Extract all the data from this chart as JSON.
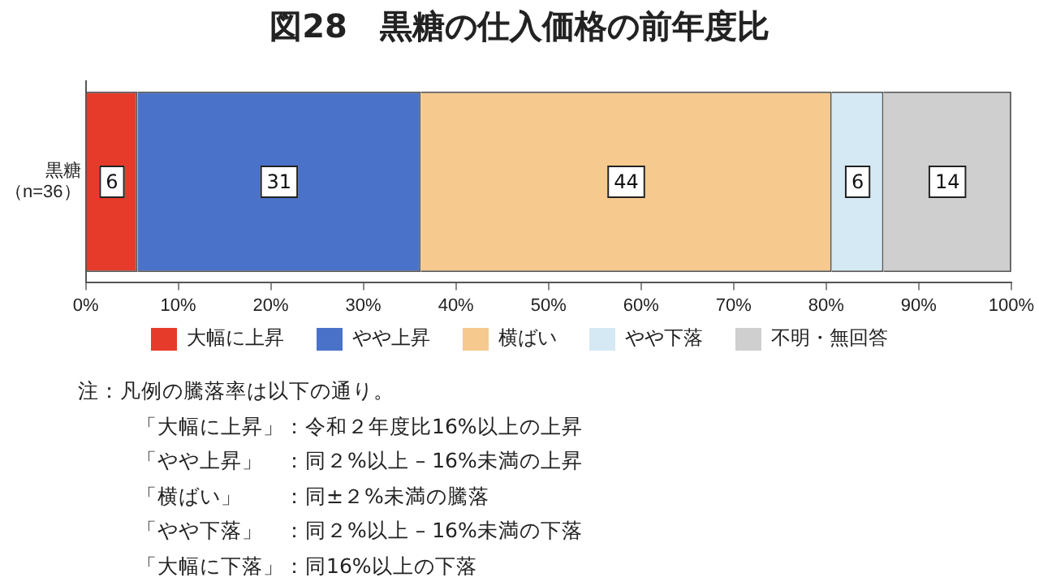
{
  "chart_data": {
    "type": "bar",
    "orientation": "horizontal",
    "stacked": true,
    "title": "図28　黒糖の仕入価格の前年度比",
    "categories": [
      "黒糖（n=36）"
    ],
    "series": [
      {
        "name": "大幅に上昇",
        "color": "#e63b2a",
        "values": [
          5.6
        ],
        "value_labels": [
          "6"
        ]
      },
      {
        "name": "やや上昇",
        "color": "#4a72c8",
        "values": [
          30.6
        ],
        "value_labels": [
          "31"
        ]
      },
      {
        "name": "横ばい",
        "color": "#f6c98e",
        "values": [
          44.4
        ],
        "value_labels": [
          "44"
        ]
      },
      {
        "name": "やや下落",
        "color": "#d5e9f5",
        "values": [
          5.6
        ],
        "value_labels": [
          "6"
        ]
      },
      {
        "name": "不明・無回答",
        "color": "#cfcfcf",
        "values": [
          13.8
        ],
        "value_labels": [
          "14"
        ]
      }
    ],
    "xlim": [
      0,
      100
    ],
    "xticks": [
      {
        "value": 0,
        "label": "0%"
      },
      {
        "value": 10,
        "label": "10%"
      },
      {
        "value": 20,
        "label": "20%"
      },
      {
        "value": 30,
        "label": "30%"
      },
      {
        "value": 40,
        "label": "40%"
      },
      {
        "value": 50,
        "label": "50%"
      },
      {
        "value": 60,
        "label": "60%"
      },
      {
        "value": 70,
        "label": "70%"
      },
      {
        "value": 80,
        "label": "80%"
      },
      {
        "value": 90,
        "label": "90%"
      },
      {
        "value": 100,
        "label": "100%"
      }
    ],
    "grid": false,
    "legend": "bottom",
    "annotations": [
      "注：凡例の騰落率は以下の通り。",
      "「大幅に上昇」：令和２年度比16%以上の上昇",
      "「やや上昇」　：同２%以上 – 16%未満の上昇",
      "「横ばい」　　：同±２%未満の騰落",
      "「やや下落」　：同２%以上 – 16%未満の下落",
      "「大幅に下落」：同16%以上の下落"
    ]
  }
}
